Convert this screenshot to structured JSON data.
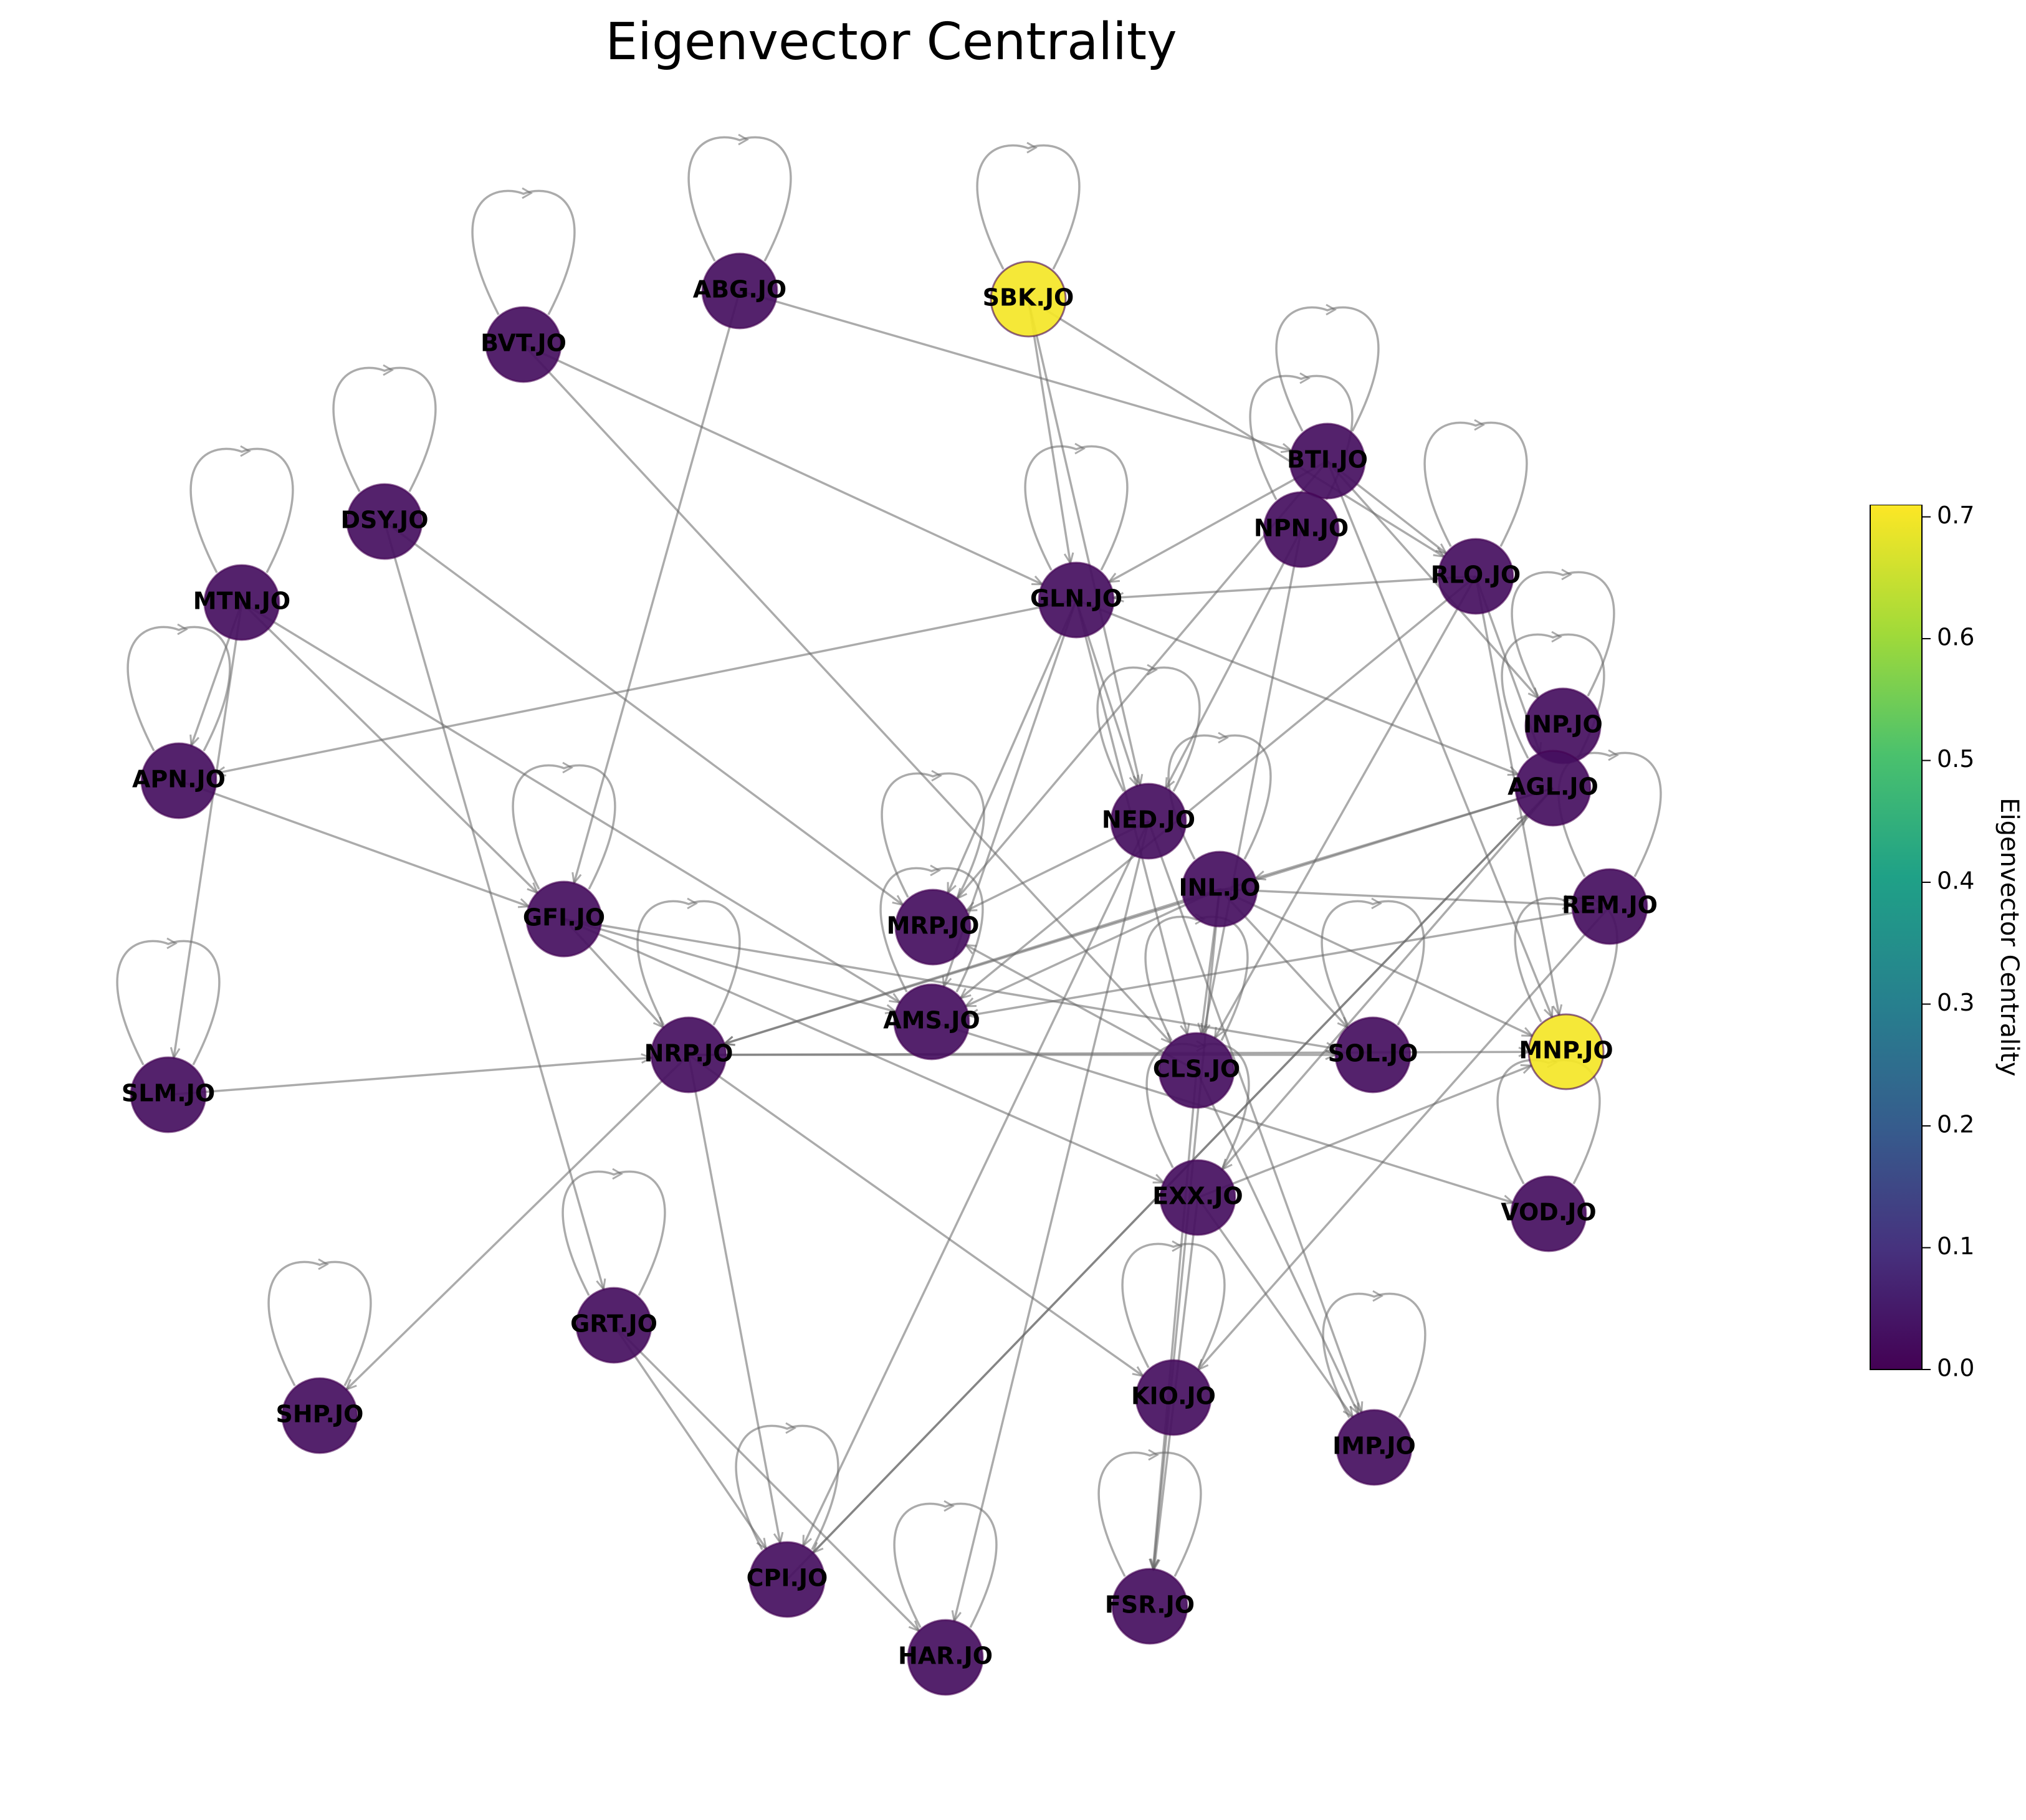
{
  "title": "Eigenvector Centrality",
  "colorbar": {
    "label": "Eigenvector Centrality",
    "min": 0.0,
    "max": 0.71,
    "ticks": [
      "0.0",
      "0.1",
      "0.2",
      "0.3",
      "0.4",
      "0.5",
      "0.6",
      "0.7"
    ],
    "colormap": "viridis",
    "low_color": "#440154",
    "high_color": "#fde725"
  },
  "nodes": [
    {
      "id": "ABG.JO",
      "centrality": 0.03
    },
    {
      "id": "SBK.JO",
      "centrality": 0.7
    },
    {
      "id": "BVT.JO",
      "centrality": 0.03
    },
    {
      "id": "BTI.JO",
      "centrality": 0.03
    },
    {
      "id": "NPN.JO",
      "centrality": 0.03
    },
    {
      "id": "DSY.JO",
      "centrality": 0.03
    },
    {
      "id": "RLO.JO",
      "centrality": 0.03
    },
    {
      "id": "MTN.JO",
      "centrality": 0.03
    },
    {
      "id": "GLN.JO",
      "centrality": 0.03
    },
    {
      "id": "INP.JO",
      "centrality": 0.03
    },
    {
      "id": "APN.JO",
      "centrality": 0.03
    },
    {
      "id": "AGL.JO",
      "centrality": 0.03
    },
    {
      "id": "NED.JO",
      "centrality": 0.03
    },
    {
      "id": "INL.JO",
      "centrality": 0.03
    },
    {
      "id": "REM.JO",
      "centrality": 0.03
    },
    {
      "id": "GFI.JO",
      "centrality": 0.03
    },
    {
      "id": "MRP.JO",
      "centrality": 0.03
    },
    {
      "id": "AMS.JO",
      "centrality": 0.03
    },
    {
      "id": "SLM.JO",
      "centrality": 0.03
    },
    {
      "id": "NRP.JO",
      "centrality": 0.03
    },
    {
      "id": "SOL.JO",
      "centrality": 0.03
    },
    {
      "id": "MNP.JO",
      "centrality": 0.7
    },
    {
      "id": "CLS.JO",
      "centrality": 0.03
    },
    {
      "id": "EXX.JO",
      "centrality": 0.03
    },
    {
      "id": "VOD.JO",
      "centrality": 0.03
    },
    {
      "id": "GRT.JO",
      "centrality": 0.03
    },
    {
      "id": "SHP.JO",
      "centrality": 0.03
    },
    {
      "id": "KIO.JO",
      "centrality": 0.03
    },
    {
      "id": "IMP.JO",
      "centrality": 0.03
    },
    {
      "id": "CPI.JO",
      "centrality": 0.03
    },
    {
      "id": "FSR.JO",
      "centrality": 0.03
    },
    {
      "id": "HAR.JO",
      "centrality": 0.03
    }
  ],
  "self_loops": [
    "ABG.JO",
    "SBK.JO",
    "BVT.JO",
    "BTI.JO",
    "NPN.JO",
    "DSY.JO",
    "RLO.JO",
    "MTN.JO",
    "GLN.JO",
    "INP.JO",
    "APN.JO",
    "AGL.JO",
    "NED.JO",
    "INL.JO",
    "REM.JO",
    "GFI.JO",
    "MRP.JO",
    "AMS.JO",
    "SLM.JO",
    "NRP.JO",
    "SOL.JO",
    "MNP.JO",
    "CLS.JO",
    "EXX.JO",
    "VOD.JO",
    "GRT.JO",
    "SHP.JO",
    "KIO.JO",
    "IMP.JO",
    "CPI.JO",
    "FSR.JO",
    "HAR.JO"
  ],
  "edges": [
    [
      "ABG.JO",
      "BTI.JO"
    ],
    [
      "ABG.JO",
      "GFI.JO"
    ],
    [
      "SBK.JO",
      "RLO.JO"
    ],
    [
      "SBK.JO",
      "GLN.JO"
    ],
    [
      "SBK.JO",
      "NED.JO"
    ],
    [
      "BVT.JO",
      "GLN.JO"
    ],
    [
      "BVT.JO",
      "CLS.JO"
    ],
    [
      "BTI.JO",
      "RLO.JO"
    ],
    [
      "BTI.JO",
      "GLN.JO"
    ],
    [
      "BTI.JO",
      "MNP.JO"
    ],
    [
      "BTI.JO",
      "INP.JO"
    ],
    [
      "BTI.JO",
      "MRP.JO"
    ],
    [
      "NPN.JO",
      "NED.JO"
    ],
    [
      "NPN.JO",
      "CLS.JO"
    ],
    [
      "DSY.JO",
      "MRP.JO"
    ],
    [
      "DSY.JO",
      "GRT.JO"
    ],
    [
      "RLO.JO",
      "GLN.JO"
    ],
    [
      "RLO.JO",
      "AMS.JO"
    ],
    [
      "RLO.JO",
      "CLS.JO"
    ],
    [
      "RLO.JO",
      "MNP.JO"
    ],
    [
      "RLO.JO",
      "AGL.JO"
    ],
    [
      "MTN.JO",
      "GFI.JO"
    ],
    [
      "MTN.JO",
      "APN.JO"
    ],
    [
      "MTN.JO",
      "SLM.JO"
    ],
    [
      "MTN.JO",
      "AMS.JO"
    ],
    [
      "GLN.JO",
      "APN.JO"
    ],
    [
      "GLN.JO",
      "NED.JO"
    ],
    [
      "GLN.JO",
      "MRP.JO"
    ],
    [
      "GLN.JO",
      "AMS.JO"
    ],
    [
      "GLN.JO",
      "AGL.JO"
    ],
    [
      "GLN.JO",
      "CLS.JO"
    ],
    [
      "APN.JO",
      "GFI.JO"
    ],
    [
      "AGL.JO",
      "NRP.JO"
    ],
    [
      "AGL.JO",
      "CPI.JO"
    ],
    [
      "AGL.JO",
      "EXX.JO"
    ],
    [
      "AGL.JO",
      "INL.JO"
    ],
    [
      "NED.JO",
      "MRP.JO"
    ],
    [
      "NED.JO",
      "IMP.JO"
    ],
    [
      "NED.JO",
      "CPI.JO"
    ],
    [
      "NED.JO",
      "HAR.JO"
    ],
    [
      "INL.JO",
      "NRP.JO"
    ],
    [
      "INL.JO",
      "MNP.JO"
    ],
    [
      "INL.JO",
      "SOL.JO"
    ],
    [
      "INL.JO",
      "AMS.JO"
    ],
    [
      "INL.JO",
      "REM.JO"
    ],
    [
      "INL.JO",
      "CLS.JO"
    ],
    [
      "INL.JO",
      "FSR.JO"
    ],
    [
      "REM.JO",
      "AMS.JO"
    ],
    [
      "REM.JO",
      "KIO.JO"
    ],
    [
      "GFI.JO",
      "AMS.JO"
    ],
    [
      "GFI.JO",
      "NRP.JO"
    ],
    [
      "GFI.JO",
      "EXX.JO"
    ],
    [
      "GFI.JO",
      "SOL.JO"
    ],
    [
      "AMS.JO",
      "VOD.JO"
    ],
    [
      "SLM.JO",
      "NRP.JO"
    ],
    [
      "NRP.JO",
      "MNP.JO"
    ],
    [
      "NRP.JO",
      "SOL.JO"
    ],
    [
      "NRP.JO",
      "SHP.JO"
    ],
    [
      "NRP.JO",
      "KIO.JO"
    ],
    [
      "NRP.JO",
      "CPI.JO"
    ],
    [
      "CLS.JO",
      "MRP.JO"
    ],
    [
      "CLS.JO",
      "IMP.JO"
    ],
    [
      "CLS.JO",
      "FSR.JO"
    ],
    [
      "EXX.JO",
      "IMP.JO"
    ],
    [
      "EXX.JO",
      "FSR.JO"
    ],
    [
      "EXX.JO",
      "MNP.JO"
    ],
    [
      "GRT.JO",
      "CPI.JO"
    ],
    [
      "GRT.JO",
      "HAR.JO"
    ],
    [
      "CPI.JO",
      "AGL.JO"
    ]
  ]
}
